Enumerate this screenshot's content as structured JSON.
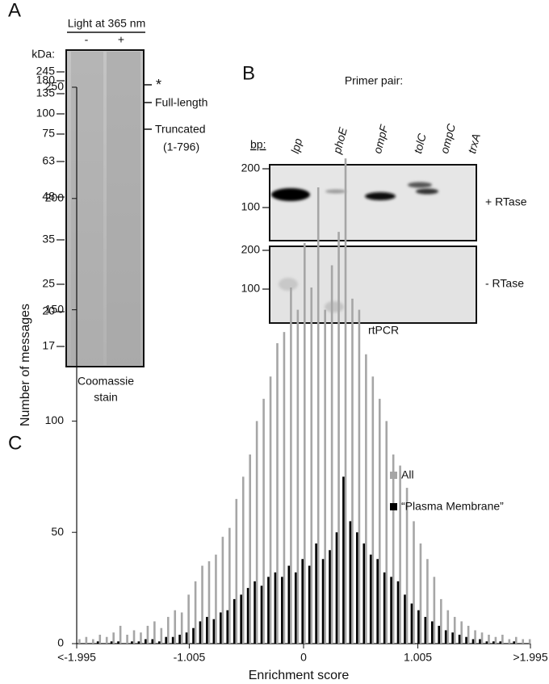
{
  "panel_a": {
    "label": "A",
    "light_header": "Light at 365 nm",
    "lanes": [
      "-",
      "+"
    ],
    "marker_header": "kDa:",
    "markers": [
      245,
      180,
      135,
      100,
      75,
      63,
      48,
      35,
      25,
      20,
      17
    ],
    "annotations": [
      "*",
      "Full-length",
      "Truncated",
      "(1-796)"
    ],
    "caption": [
      "Coomassie",
      "stain"
    ]
  },
  "panel_b": {
    "label": "B",
    "title": "Primer pair:",
    "marker_header": "bp:",
    "lanes": [
      "lpp",
      "phoE",
      "ompF",
      "tolC",
      "ompC",
      "trxA"
    ],
    "gels": [
      {
        "markers": [
          200,
          100
        ],
        "condition": "+ RTase"
      },
      {
        "markers": [
          200,
          100
        ],
        "condition": "- RTase"
      }
    ],
    "caption": "rtPCR"
  },
  "chart_data": {
    "type": "bar",
    "panel_label": "C",
    "x_label": "Enrichment score",
    "y_label": "Number of messages",
    "x": [
      -1.98,
      -1.92,
      -1.86,
      -1.8,
      -1.74,
      -1.68,
      -1.62,
      -1.56,
      -1.5,
      -1.44,
      -1.38,
      -1.32,
      -1.26,
      -1.2,
      -1.14,
      -1.08,
      -1.02,
      -0.96,
      -0.9,
      -0.84,
      -0.78,
      -0.72,
      -0.66,
      -0.6,
      -0.54,
      -0.48,
      -0.42,
      -0.36,
      -0.3,
      -0.24,
      -0.18,
      -0.12,
      -0.06,
      0,
      0.06,
      0.12,
      0.18,
      0.24,
      0.3,
      0.36,
      0.42,
      0.48,
      0.54,
      0.6,
      0.66,
      0.72,
      0.78,
      0.84,
      0.9,
      0.96,
      1.02,
      1.08,
      1.14,
      1.2,
      1.26,
      1.32,
      1.38,
      1.44,
      1.5,
      1.56,
      1.62,
      1.68,
      1.74,
      1.8,
      1.86,
      1.92,
      1.98
    ],
    "series": [
      {
        "name": "All",
        "color": "#a6a6a6",
        "values": [
          2,
          3,
          2,
          4,
          3,
          5,
          8,
          4,
          6,
          5,
          8,
          10,
          7,
          12,
          15,
          14,
          22,
          28,
          35,
          37,
          40,
          48,
          52,
          65,
          75,
          85,
          100,
          110,
          120,
          135,
          140,
          160,
          150,
          180,
          160,
          205,
          150,
          170,
          185,
          218,
          155,
          150,
          130,
          120,
          110,
          100,
          85,
          80,
          70,
          55,
          45,
          38,
          30,
          20,
          15,
          12,
          10,
          8,
          6,
          5,
          4,
          3,
          4,
          2,
          3,
          2,
          2
        ]
      },
      {
        "name": "“Plasma Membrane”",
        "color": "#000000",
        "values": [
          0,
          0,
          0,
          1,
          0,
          1,
          1,
          0,
          1,
          1,
          2,
          2,
          1,
          3,
          3,
          4,
          5,
          7,
          10,
          12,
          11,
          14,
          15,
          20,
          22,
          25,
          28,
          26,
          30,
          32,
          30,
          35,
          32,
          38,
          35,
          45,
          38,
          42,
          50,
          75,
          55,
          50,
          45,
          40,
          38,
          32,
          30,
          28,
          22,
          18,
          15,
          12,
          10,
          8,
          6,
          5,
          4,
          3,
          2,
          2,
          1,
          1,
          1,
          0,
          1,
          0,
          0
        ]
      }
    ],
    "xlim": [
      -1.995,
      1.995
    ],
    "xticks": [
      {
        "value": -1.995,
        "label": "<-1.995"
      },
      -1.005,
      0,
      1.005,
      {
        "value": 1.995,
        "label": ">1.995"
      }
    ],
    "ylim": [
      0,
      250
    ],
    "yticks": [
      0,
      50,
      100,
      150,
      200,
      250
    ],
    "grid": false,
    "legend": "right"
  }
}
